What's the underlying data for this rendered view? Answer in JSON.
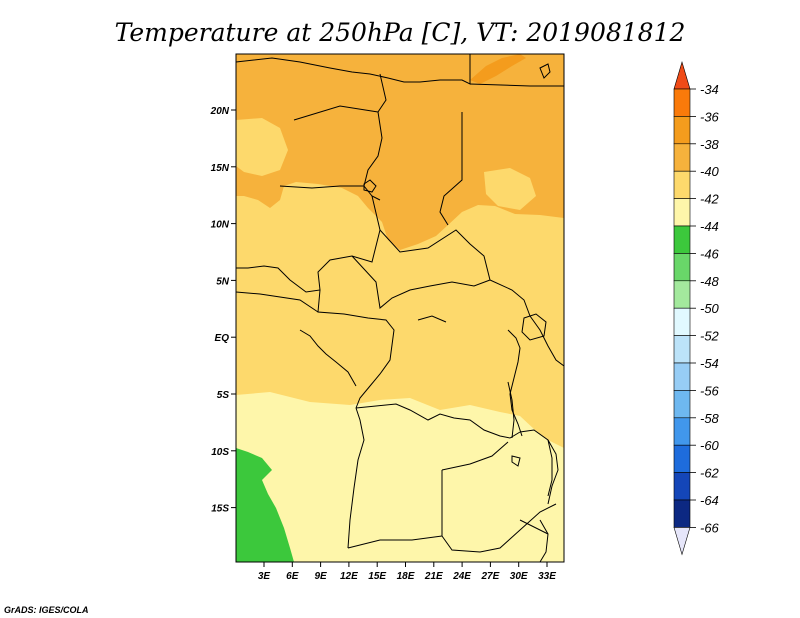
{
  "title": "Temperature at 250hPa [C], VT: 2019081812",
  "credit": "GrADS: IGES/COLA",
  "map": {
    "lat_labels": [
      "20N",
      "15N",
      "10N",
      "5N",
      "EQ",
      "5S",
      "10S",
      "15S"
    ],
    "lon_labels": [
      "3E",
      "6E",
      "9E",
      "12E",
      "15E",
      "18E",
      "21E",
      "24E",
      "27E",
      "30E",
      "33E"
    ]
  },
  "colorbar": {
    "labels": [
      "-34",
      "-36",
      "-38",
      "-40",
      "-42",
      "-44",
      "-46",
      "-48",
      "-50",
      "-52",
      "-54",
      "-56",
      "-58",
      "-60",
      "-62",
      "-64",
      "-66"
    ],
    "colors": [
      "#f04b17",
      "#fa7a0a",
      "#f49c1d",
      "#f6b23c",
      "#fdd96c",
      "#fef6aa",
      "#3cc83c",
      "#69d769",
      "#a3e99d",
      "#e1f9ff",
      "#bce3f9",
      "#97cdf5",
      "#6eb8f0",
      "#4197ec",
      "#1e6cdc",
      "#1446b8",
      "#0c2882",
      "#06145a",
      "#e6e6fa"
    ]
  }
}
